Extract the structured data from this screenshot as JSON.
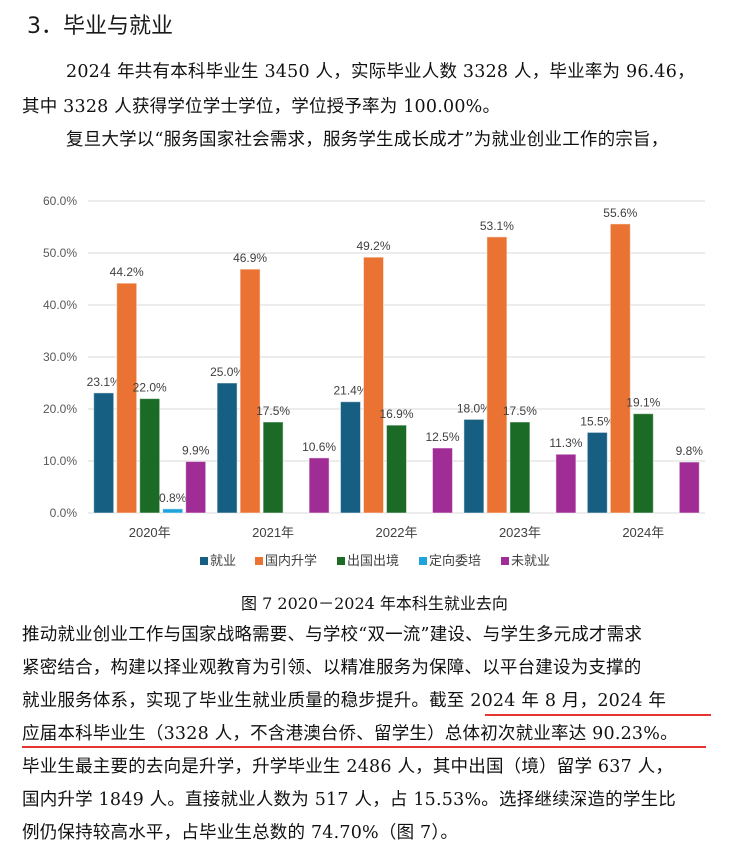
{
  "section": {
    "heading": "3．毕业与就业"
  },
  "paragraph1": {
    "lines": [
      "2024 年共有本科毕业生 3450 人，实际毕业人数 3328 人，毕业率为 96.46，",
      "其中 3328 人获得学位学士学位，学位授予率为 100.00%。",
      "复旦大学以“服务国家社会需求，服务学生成长成才”为就业创业工作的宗旨，"
    ]
  },
  "figure": {
    "caption": "图 7 2020－2024 年本科生就业去向"
  },
  "chart_data": {
    "type": "bar",
    "title": "",
    "xlabel": "",
    "ylabel": "",
    "ylim": [
      0,
      60
    ],
    "y_ticks": [
      "0.0%",
      "10.0%",
      "20.0%",
      "30.0%",
      "40.0%",
      "50.0%",
      "60.0%"
    ],
    "grid": true,
    "legend_position": "bottom",
    "categories": [
      "2020年",
      "2021年",
      "2022年",
      "2023年",
      "2024年"
    ],
    "series": [
      {
        "name": "就业",
        "color": "#175e83",
        "values": [
          23.1,
          25.0,
          21.4,
          18.0,
          15.5
        ]
      },
      {
        "name": "国内升学",
        "color": "#ea7333",
        "values": [
          44.2,
          46.9,
          49.2,
          53.1,
          55.6
        ]
      },
      {
        "name": "出国出境",
        "color": "#1b6b27",
        "values": [
          22.0,
          17.5,
          16.9,
          17.5,
          19.1
        ]
      },
      {
        "name": "定向委培",
        "color": "#1fa3dc",
        "values": [
          0.8,
          null,
          null,
          null,
          null
        ]
      },
      {
        "name": "未就业",
        "color": "#a02c95",
        "values": [
          9.9,
          10.6,
          12.5,
          11.3,
          9.8
        ]
      }
    ],
    "data_labels": [
      [
        "23.1%",
        "44.2%",
        "22.0%",
        "0.8%",
        "9.9%"
      ],
      [
        "25.0%",
        "46.9%",
        "17.5%",
        "",
        "10.6%"
      ],
      [
        "21.4%",
        "49.2%",
        "16.9%",
        "",
        "12.5%"
      ],
      [
        "18.0%",
        "53.1%",
        "17.5%",
        "",
        "11.3%"
      ],
      [
        "15.5%",
        "55.6%",
        "19.1%",
        "",
        "9.8%"
      ]
    ]
  },
  "paragraph2": {
    "lines": [
      "推动就业创业工作与国家战略需要、与学校“双一流”建设、与学生多元成才需求",
      "紧密结合，构建以择业观教育为引领、以精准服务为保障、以平台建设为支撑的",
      "就业服务体系，实现了毕业生就业质量的稳步提升。截至 2024 年 8 月，2024 年",
      "应届本科毕业生（3328 人，不含港澳台侨、留学生）总体初次就业率达 90.23%。",
      "毕业生最主要的去向是升学，升学毕业生 2486 人，其中出国（境）留学 637 人，",
      "国内升学 1849 人。直接就业人数为 517 人，占 15.53%。选择继续深造的学生比",
      "例仍保持较高水平，占毕业生总数的 74.70%（图 7）。"
    ]
  },
  "annotations": {
    "underline_color": "#e8342f"
  }
}
